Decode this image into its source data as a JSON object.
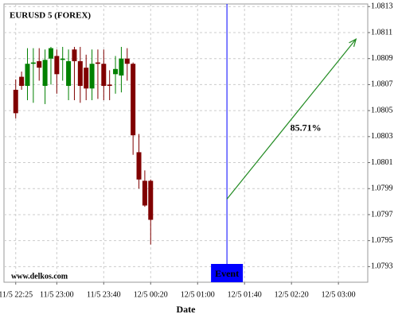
{
  "chart_data": {
    "type": "candlestick",
    "title": "EURUSD 5 (FOREX)",
    "x_label": "Date",
    "watermark": "www.delkos.com",
    "x": [
      0,
      1,
      2,
      3,
      4,
      5,
      6,
      7,
      8,
      9,
      10,
      11,
      12,
      13,
      14,
      15,
      16,
      17,
      18,
      19,
      20,
      21,
      22,
      23
    ],
    "open": [
      1.08066,
      1.08076,
      1.08069,
      1.08086,
      1.08088,
      1.08069,
      1.0809,
      1.08092,
      1.08089,
      1.08069,
      1.08097,
      1.08088,
      1.08083,
      1.08067,
      1.08087,
      1.08086,
      1.0807,
      1.08078,
      1.08077,
      1.0809,
      1.08086,
      1.08018,
      1.07996,
      1.07996
    ],
    "high": [
      1.08074,
      1.0808,
      1.08098,
      1.08098,
      1.08098,
      1.08097,
      1.08099,
      1.08097,
      1.08099,
      1.08097,
      1.08099,
      1.08099,
      1.08093,
      1.08097,
      1.08097,
      1.08097,
      1.08081,
      1.08092,
      1.08099,
      1.08098,
      1.08087,
      1.08032,
      1.08004,
      1.07997
    ],
    "low": [
      1.08044,
      1.08066,
      1.08058,
      1.08056,
      1.08073,
      1.08055,
      1.0807,
      1.08063,
      1.08073,
      1.08058,
      1.08058,
      1.08056,
      1.08058,
      1.08058,
      1.08059,
      1.08058,
      1.08058,
      1.08063,
      1.08064,
      1.08073,
      1.08016,
      1.0799,
      1.07976,
      1.07947
    ],
    "close": [
      1.08048,
      1.08069,
      1.08086,
      1.08087,
      1.08083,
      1.08089,
      1.08098,
      1.08078,
      1.0809,
      1.08088,
      1.08088,
      1.08069,
      1.08067,
      1.08086,
      1.08086,
      1.08069,
      1.08069,
      1.08082,
      1.0809,
      1.08086,
      1.08031,
      1.07997,
      1.07977,
      1.07966
    ],
    "up_color": "#008000",
    "down_color": "#800000",
    "xlim": [
      -2,
      60
    ],
    "xticks": [
      {
        "value": 0,
        "label": "11/5 22:25"
      },
      {
        "value": 7,
        "label": "11/5 23:00"
      },
      {
        "value": 15,
        "label": "11/5 23:40"
      },
      {
        "value": 23,
        "label": "12/5 00:20"
      },
      {
        "value": 31,
        "label": "12/5 01:00"
      },
      {
        "value": 39,
        "label": "12/5 01:40"
      },
      {
        "value": 47,
        "label": "12/5 02:20"
      },
      {
        "value": 55,
        "label": "12/5 03:00"
      }
    ],
    "ylim": [
      1.07918,
      1.08132
    ],
    "yticks": [
      1.0813,
      1.0811,
      1.0809,
      1.0807,
      1.0805,
      1.0803,
      1.0801,
      1.0799,
      1.0797,
      1.0795,
      1.0793
    ],
    "grid": true,
    "event": {
      "label": "Event",
      "x": 36,
      "value": 1.07982,
      "color": "#0000ff"
    },
    "prediction": {
      "label": "85.71%",
      "x": 58,
      "value": 1.08105,
      "color": "#228b22"
    }
  }
}
